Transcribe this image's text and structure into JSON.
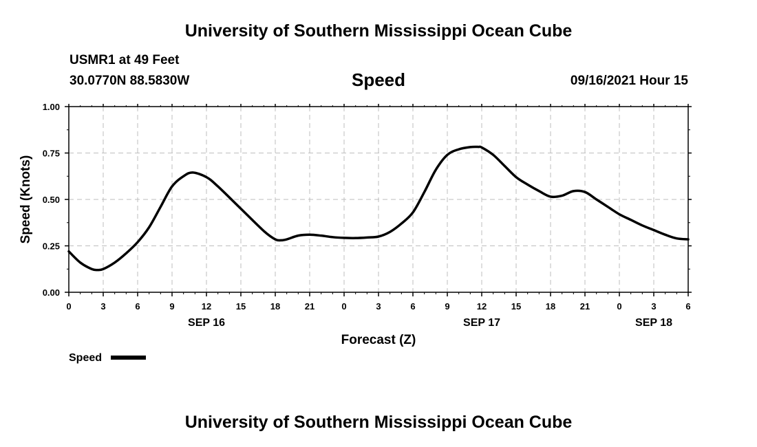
{
  "header": {
    "title_top": "University of Southern Mississippi Ocean Cube",
    "station": "USMR1 at 49 Feet",
    "coords": "30.0770N  88.5830W",
    "chart_title": "Speed",
    "datetime": "09/16/2021 Hour 15",
    "title_bottom": "University of Southern Mississippi Ocean Cube"
  },
  "chart_data": {
    "type": "line",
    "title": "Speed",
    "xlabel": "Forecast (Z)",
    "ylabel": "Speed (Knots)",
    "xlim": [
      0,
      54
    ],
    "ylim": [
      0,
      1
    ],
    "x_tick_hours": [
      0,
      3,
      6,
      9,
      12,
      15,
      18,
      21,
      24,
      27,
      30,
      33,
      36,
      39,
      42,
      45,
      48,
      51,
      54
    ],
    "x_tick_labels": [
      "0",
      "3",
      "6",
      "9",
      "12",
      "15",
      "18",
      "21",
      "0",
      "3",
      "6",
      "9",
      "12",
      "15",
      "18",
      "21",
      "0",
      "3",
      "6"
    ],
    "y_ticks": [
      0,
      0.25,
      0.5,
      0.75,
      1.0
    ],
    "y_tick_labels": [
      "0.00",
      "0.25",
      "0.50",
      "0.75",
      "1.00"
    ],
    "date_labels": [
      {
        "hour": 12,
        "label": "SEP 16"
      },
      {
        "hour": 36,
        "label": "SEP 17"
      },
      {
        "hour": 51,
        "label": "SEP 18"
      }
    ],
    "grid": true,
    "legend": [
      {
        "name": "Speed",
        "color": "#000000"
      }
    ],
    "series": [
      {
        "name": "Speed",
        "color": "#000000",
        "x": [
          0,
          1,
          2,
          2.5,
          3,
          4,
          5,
          6,
          7,
          8,
          9,
          10,
          10.8,
          12,
          13,
          15,
          17,
          18,
          18.5,
          19,
          20,
          21,
          22,
          23,
          24,
          25,
          26,
          27,
          28,
          29,
          30,
          31,
          32,
          33,
          34,
          35,
          35.7,
          36,
          37,
          38,
          39,
          40,
          41,
          42,
          43,
          44,
          45,
          46,
          47,
          48,
          49,
          50,
          51,
          52,
          53,
          54
        ],
        "values": [
          0.22,
          0.16,
          0.125,
          0.12,
          0.125,
          0.16,
          0.21,
          0.27,
          0.35,
          0.46,
          0.57,
          0.625,
          0.645,
          0.62,
          0.57,
          0.45,
          0.33,
          0.285,
          0.28,
          0.285,
          0.305,
          0.31,
          0.305,
          0.297,
          0.293,
          0.292,
          0.295,
          0.3,
          0.325,
          0.37,
          0.43,
          0.54,
          0.66,
          0.74,
          0.77,
          0.782,
          0.783,
          0.78,
          0.74,
          0.68,
          0.62,
          0.58,
          0.545,
          0.515,
          0.52,
          0.545,
          0.54,
          0.5,
          0.46,
          0.42,
          0.39,
          0.36,
          0.335,
          0.31,
          0.29,
          0.285
        ]
      }
    ]
  }
}
